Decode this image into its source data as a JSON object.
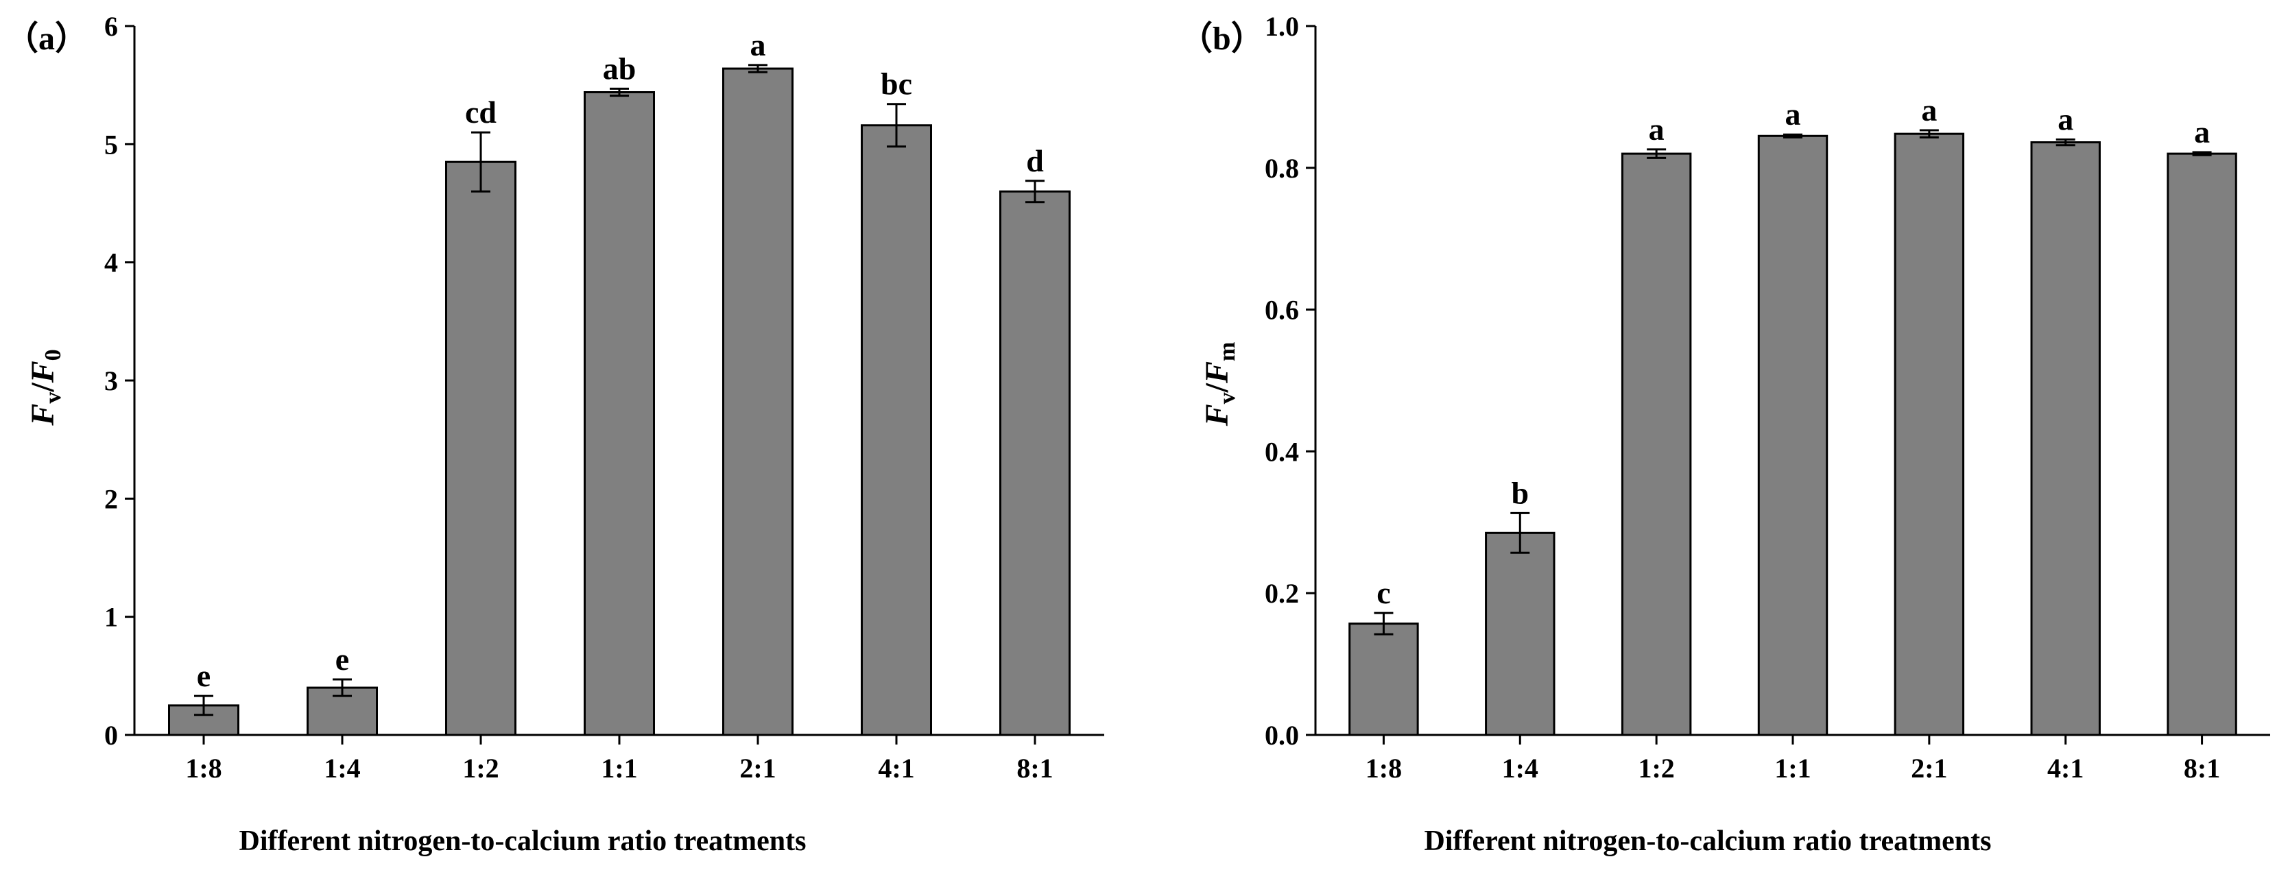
{
  "chart_data": [
    {
      "type": "bar",
      "panel": "(a)",
      "panel_parts": [
        "（",
        "a",
        "）"
      ],
      "categories": [
        "1:8",
        "1:4",
        "1:2",
        "1:1",
        "2:1",
        "4:1",
        "8:1"
      ],
      "values": [
        0.25,
        0.4,
        4.85,
        5.44,
        5.64,
        5.16,
        4.6
      ],
      "errors": [
        0.08,
        0.07,
        0.25,
        0.03,
        0.03,
        0.18,
        0.09
      ],
      "significance": [
        "e",
        "e",
        "cd",
        "ab",
        "a",
        "bc",
        "d"
      ],
      "xlabel": "Different nitrogen-to-calcium ratio treatments",
      "ylabel": "Fv/F0",
      "ylabel_parts": {
        "F1": "F",
        "sub1": "v",
        "slash": "/",
        "F2": "F",
        "sub2": "0"
      },
      "ylim": [
        0,
        6
      ],
      "yticks": [
        "0",
        "1",
        "2",
        "3",
        "4",
        "5",
        "6"
      ],
      "bar_color": "#808080",
      "grid": false
    },
    {
      "type": "bar",
      "panel": "(b)",
      "panel_parts": [
        "（",
        "b",
        "）"
      ],
      "categories": [
        "1:8",
        "1:4",
        "1:2",
        "1:1",
        "2:1",
        "4:1",
        "8:1"
      ],
      "values": [
        0.157,
        0.285,
        0.82,
        0.845,
        0.848,
        0.836,
        0.82
      ],
      "errors": [
        0.015,
        0.028,
        0.006,
        0.002,
        0.005,
        0.004,
        0.002
      ],
      "significance": [
        "c",
        "b",
        "a",
        "a",
        "a",
        "a",
        "a"
      ],
      "xlabel": "Different nitrogen-to-calcium ratio treatments",
      "ylabel": "Fv/Fm",
      "ylabel_parts": {
        "F1": "F",
        "sub1": "v",
        "slash": "/",
        "F2": "F",
        "sub2": "m"
      },
      "ylim": [
        0,
        1.0
      ],
      "yticks": [
        "0.0",
        "0.2",
        "0.4",
        "0.6",
        "0.8",
        "1.0"
      ],
      "bar_color": "#808080",
      "grid": false
    }
  ]
}
